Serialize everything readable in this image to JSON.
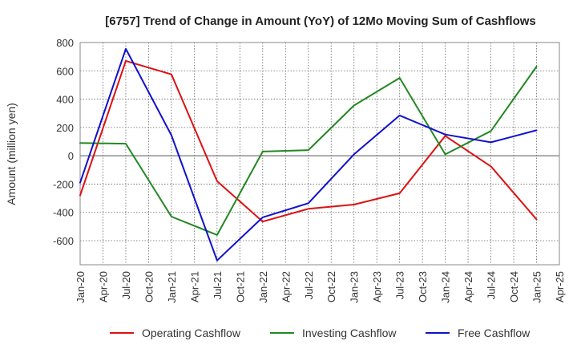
{
  "chart_data": {
    "type": "line",
    "title": "[6757]  Trend of Change in Amount (YoY) of 12Mo Moving Sum of Cashflows",
    "xlabel": "",
    "ylabel": "Amount (million yen)",
    "ylim": [
      -770,
      800
    ],
    "yticks": [
      800,
      600,
      400,
      200,
      0,
      -200,
      -400,
      -600
    ],
    "grid": true,
    "legend_position": "bottom",
    "categories": [
      "Jan-20",
      "Apr-20",
      "Jul-20",
      "Oct-20",
      "Jan-21",
      "Apr-21",
      "Jul-21",
      "Oct-21",
      "Jan-22",
      "Apr-22",
      "Jul-22",
      "Oct-22",
      "Jan-23",
      "Apr-23",
      "Jul-23",
      "Oct-23",
      "Jan-24",
      "Apr-24",
      "Jul-24",
      "Oct-24",
      "Jan-25",
      "Apr-25"
    ],
    "series": [
      {
        "name": "Operating Cashflow",
        "color": "#dd1111",
        "points": [
          [
            0,
            -280
          ],
          [
            2,
            670
          ],
          [
            4,
            575
          ],
          [
            6,
            -180
          ],
          [
            8,
            -465
          ],
          [
            10,
            -375
          ],
          [
            12,
            -345
          ],
          [
            14,
            -265
          ],
          [
            16,
            140
          ],
          [
            18,
            -75
          ],
          [
            20,
            -450
          ]
        ]
      },
      {
        "name": "Investing Cashflow",
        "color": "#228822",
        "points": [
          [
            0,
            90
          ],
          [
            2,
            85
          ],
          [
            4,
            -430
          ],
          [
            6,
            -560
          ],
          [
            8,
            30
          ],
          [
            10,
            40
          ],
          [
            12,
            355
          ],
          [
            14,
            550
          ],
          [
            16,
            10
          ],
          [
            18,
            175
          ],
          [
            20,
            630
          ]
        ]
      },
      {
        "name": "Free Cashflow",
        "color": "#1111cc",
        "points": [
          [
            0,
            -190
          ],
          [
            2,
            755
          ],
          [
            4,
            145
          ],
          [
            6,
            -740
          ],
          [
            8,
            -435
          ],
          [
            10,
            -335
          ],
          [
            12,
            10
          ],
          [
            14,
            285
          ],
          [
            16,
            150
          ],
          [
            18,
            95
          ],
          [
            20,
            180
          ]
        ]
      }
    ]
  }
}
